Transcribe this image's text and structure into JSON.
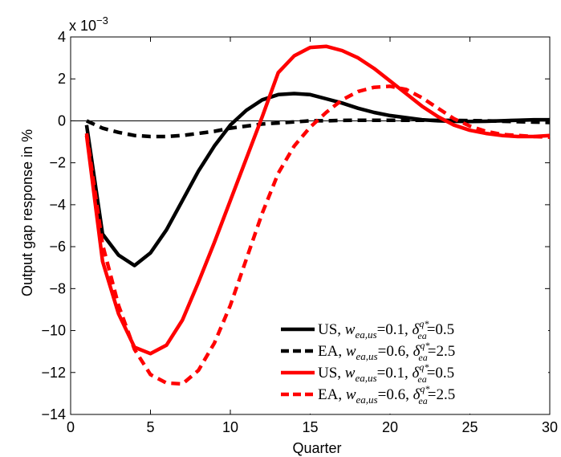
{
  "chart_data": {
    "type": "line",
    "title": "",
    "xlabel": "Quarter",
    "ylabel": "Output gap response in %",
    "y_scale_label": "x 10",
    "y_scale_exponent": "−3",
    "xlim": [
      0,
      30
    ],
    "ylim": [
      -14,
      4
    ],
    "x_ticks": [
      0,
      5,
      10,
      15,
      20,
      25,
      30
    ],
    "y_ticks": [
      -14,
      -12,
      -10,
      -8,
      -6,
      -4,
      -2,
      0,
      2,
      4
    ],
    "x_tick_labels": [
      "0",
      "5",
      "10",
      "15",
      "20",
      "25",
      "30"
    ],
    "y_tick_labels": [
      "−14",
      "−12",
      "−10",
      "−8",
      "−6",
      "−4",
      "−2",
      "0",
      "2",
      "4"
    ],
    "grid": false,
    "zero_line": true,
    "legend_position": "bottom-right",
    "x": [
      1,
      2,
      3,
      4,
      5,
      6,
      7,
      8,
      9,
      10,
      11,
      12,
      13,
      14,
      15,
      16,
      17,
      18,
      19,
      20,
      21,
      22,
      23,
      24,
      25,
      26,
      27,
      28,
      29,
      30
    ],
    "series": [
      {
        "legend_prefix": "US, ",
        "legend_sub1": "ea,us",
        "legend_eq1": "=0.1, ",
        "legend_sup": "q*",
        "legend_sub2": "ea",
        "legend_eq2": "=0.5",
        "color": "#000000",
        "style": "solid",
        "values": [
          -0.2,
          -5.4,
          -6.4,
          -6.9,
          -6.3,
          -5.2,
          -3.8,
          -2.4,
          -1.2,
          -0.2,
          0.5,
          1.0,
          1.25,
          1.3,
          1.25,
          1.05,
          0.85,
          0.6,
          0.4,
          0.25,
          0.15,
          0.05,
          0.0,
          -0.02,
          -0.03,
          -0.02,
          0.0,
          0.03,
          0.05,
          0.05
        ]
      },
      {
        "legend_prefix": "EA, ",
        "legend_sub1": "ea,us",
        "legend_eq1": "=0.6, ",
        "legend_sup": "q*",
        "legend_sub2": "ea",
        "legend_eq2": "=2.5",
        "color": "#000000",
        "style": "dashed",
        "values": [
          0.0,
          -0.35,
          -0.55,
          -0.7,
          -0.75,
          -0.75,
          -0.7,
          -0.6,
          -0.5,
          -0.35,
          -0.25,
          -0.15,
          -0.1,
          -0.05,
          0.0,
          0.0,
          0.02,
          0.03,
          0.03,
          0.03,
          0.03,
          0.03,
          0.02,
          0.02,
          0.01,
          0.0,
          -0.02,
          -0.04,
          -0.06,
          -0.08
        ]
      },
      {
        "legend_prefix": "US, ",
        "legend_sub1": "ea,us",
        "legend_eq1": "=0.1, ",
        "legend_sup": "q*",
        "legend_sub2": "ea",
        "legend_eq2": "=0.5",
        "color": "#ff0000",
        "style": "solid",
        "values": [
          -0.7,
          -6.7,
          -9.2,
          -10.8,
          -11.1,
          -10.7,
          -9.5,
          -7.7,
          -5.8,
          -3.8,
          -1.8,
          0.2,
          2.3,
          3.1,
          3.5,
          3.55,
          3.35,
          3.0,
          2.5,
          1.9,
          1.3,
          0.7,
          0.2,
          -0.2,
          -0.45,
          -0.6,
          -0.7,
          -0.75,
          -0.75,
          -0.7
        ]
      },
      {
        "legend_prefix": "EA, ",
        "legend_sub1": "ea,us",
        "legend_eq1": "=0.6, ",
        "legend_sup": "q*",
        "legend_sub2": "ea",
        "legend_eq2": "=2.5",
        "color": "#ff0000",
        "style": "dashed",
        "values": [
          -0.6,
          -5.9,
          -8.8,
          -10.9,
          -12.1,
          -12.5,
          -12.55,
          -11.9,
          -10.6,
          -8.8,
          -6.6,
          -4.4,
          -2.5,
          -1.2,
          -0.3,
          0.4,
          1.0,
          1.4,
          1.6,
          1.65,
          1.5,
          1.1,
          0.6,
          0.1,
          -0.25,
          -0.5,
          -0.65,
          -0.7,
          -0.75,
          -0.78
        ]
      }
    ]
  }
}
